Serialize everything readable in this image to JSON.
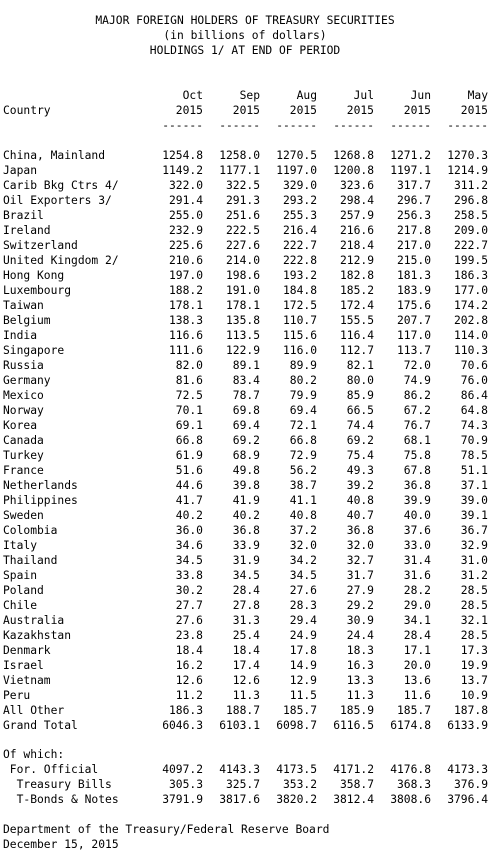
{
  "header": {
    "title_line_1": "MAJOR FOREIGN HOLDERS OF TREASURY SECURITIES",
    "title_line_2": "(in billions of dollars)",
    "title_line_3": "HOLDINGS 1/ AT END OF PERIOD"
  },
  "columns": {
    "country_label": "Country",
    "months": [
      "Oct",
      "Sep",
      "Aug",
      "Jul",
      "Jun",
      "May"
    ],
    "years": [
      "2015",
      "2015",
      "2015",
      "2015",
      "2015",
      "2015"
    ],
    "underline": "------"
  },
  "rows": [
    {
      "country": "China, Mainland",
      "values": [
        "1254.8",
        "1258.0",
        "1270.5",
        "1268.8",
        "1271.2",
        "1270.3"
      ]
    },
    {
      "country": "Japan",
      "values": [
        "1149.2",
        "1177.1",
        "1197.0",
        "1200.8",
        "1197.1",
        "1214.9"
      ]
    },
    {
      "country": "Carib Bkg Ctrs 4/",
      "values": [
        "322.0",
        "322.5",
        "329.0",
        "323.6",
        "317.7",
        "311.2"
      ]
    },
    {
      "country": "Oil Exporters 3/",
      "values": [
        "291.4",
        "291.3",
        "293.2",
        "298.4",
        "296.7",
        "296.8"
      ]
    },
    {
      "country": "Brazil",
      "values": [
        "255.0",
        "251.6",
        "255.3",
        "257.9",
        "256.3",
        "258.5"
      ]
    },
    {
      "country": "Ireland",
      "values": [
        "232.9",
        "222.5",
        "216.4",
        "216.6",
        "217.8",
        "209.0"
      ]
    },
    {
      "country": "Switzerland",
      "values": [
        "225.6",
        "227.6",
        "222.7",
        "218.4",
        "217.0",
        "222.7"
      ]
    },
    {
      "country": "United Kingdom 2/",
      "values": [
        "210.6",
        "214.0",
        "222.8",
        "212.9",
        "215.0",
        "199.5"
      ]
    },
    {
      "country": "Hong Kong",
      "values": [
        "197.0",
        "198.6",
        "193.2",
        "182.8",
        "181.3",
        "186.3"
      ]
    },
    {
      "country": "Luxembourg",
      "values": [
        "188.2",
        "191.0",
        "184.8",
        "185.2",
        "183.9",
        "177.0"
      ]
    },
    {
      "country": "Taiwan",
      "values": [
        "178.1",
        "178.1",
        "172.5",
        "172.4",
        "175.6",
        "174.2"
      ]
    },
    {
      "country": "Belgium",
      "values": [
        "138.3",
        "135.8",
        "110.7",
        "155.5",
        "207.7",
        "202.8"
      ]
    },
    {
      "country": "India",
      "values": [
        "116.6",
        "113.5",
        "115.6",
        "116.4",
        "117.0",
        "114.0"
      ]
    },
    {
      "country": "Singapore",
      "values": [
        "111.6",
        "122.9",
        "116.0",
        "112.7",
        "113.7",
        "110.3"
      ]
    },
    {
      "country": "Russia",
      "values": [
        "82.0",
        "89.1",
        "89.9",
        "82.1",
        "72.0",
        "70.6"
      ]
    },
    {
      "country": "Germany",
      "values": [
        "81.6",
        "83.4",
        "80.2",
        "80.0",
        "74.9",
        "76.0"
      ]
    },
    {
      "country": "Mexico",
      "values": [
        "72.5",
        "78.7",
        "79.9",
        "85.9",
        "86.2",
        "86.4"
      ]
    },
    {
      "country": "Norway",
      "values": [
        "70.1",
        "69.8",
        "69.4",
        "66.5",
        "67.2",
        "64.8"
      ]
    },
    {
      "country": "Korea",
      "values": [
        "69.1",
        "69.4",
        "72.1",
        "74.4",
        "76.7",
        "74.3"
      ]
    },
    {
      "country": "Canada",
      "values": [
        "66.8",
        "69.2",
        "66.8",
        "69.2",
        "68.1",
        "70.9"
      ]
    },
    {
      "country": "Turkey",
      "values": [
        "61.9",
        "68.9",
        "72.9",
        "75.4",
        "75.8",
        "78.5"
      ]
    },
    {
      "country": "France",
      "values": [
        "51.6",
        "49.8",
        "56.2",
        "49.3",
        "67.8",
        "51.1"
      ]
    },
    {
      "country": "Netherlands",
      "values": [
        "44.6",
        "39.8",
        "38.7",
        "39.2",
        "36.8",
        "37.1"
      ]
    },
    {
      "country": "Philippines",
      "values": [
        "41.7",
        "41.9",
        "41.1",
        "40.8",
        "39.9",
        "39.0"
      ]
    },
    {
      "country": "Sweden",
      "values": [
        "40.2",
        "40.2",
        "40.8",
        "40.7",
        "40.0",
        "39.1"
      ]
    },
    {
      "country": "Colombia",
      "values": [
        "36.0",
        "36.8",
        "37.2",
        "36.8",
        "37.6",
        "36.7"
      ]
    },
    {
      "country": "Italy",
      "values": [
        "34.6",
        "33.9",
        "32.0",
        "32.0",
        "33.0",
        "32.9"
      ]
    },
    {
      "country": "Thailand",
      "values": [
        "34.5",
        "31.9",
        "34.2",
        "32.7",
        "31.4",
        "31.0"
      ]
    },
    {
      "country": "Spain",
      "values": [
        "33.8",
        "34.5",
        "34.5",
        "31.7",
        "31.6",
        "31.2"
      ]
    },
    {
      "country": "Poland",
      "values": [
        "30.2",
        "28.4",
        "27.6",
        "27.9",
        "28.2",
        "28.5"
      ]
    },
    {
      "country": "Chile",
      "values": [
        "27.7",
        "27.8",
        "28.3",
        "29.2",
        "29.0",
        "28.5"
      ]
    },
    {
      "country": "Australia",
      "values": [
        "27.6",
        "31.3",
        "29.4",
        "30.9",
        "34.1",
        "32.1"
      ]
    },
    {
      "country": "Kazakhstan",
      "values": [
        "23.8",
        "25.4",
        "24.9",
        "24.4",
        "28.4",
        "28.5"
      ]
    },
    {
      "country": "Denmark",
      "values": [
        "18.4",
        "18.4",
        "17.8",
        "18.3",
        "17.1",
        "17.3"
      ]
    },
    {
      "country": "Israel",
      "values": [
        "16.2",
        "17.4",
        "14.9",
        "16.3",
        "20.0",
        "19.9"
      ]
    },
    {
      "country": "Vietnam",
      "values": [
        "12.6",
        "12.6",
        "12.9",
        "13.3",
        "13.6",
        "13.7"
      ]
    },
    {
      "country": "Peru",
      "values": [
        "11.2",
        "11.3",
        "11.5",
        "11.3",
        "11.6",
        "10.9"
      ]
    },
    {
      "country": "All Other",
      "values": [
        "186.3",
        "188.7",
        "185.7",
        "185.9",
        "185.7",
        "187.8"
      ]
    },
    {
      "country": "Grand Total",
      "values": [
        "6046.3",
        "6103.1",
        "6098.7",
        "6116.5",
        "6174.8",
        "6133.9"
      ]
    }
  ],
  "of_which": {
    "label": "Of which:",
    "rows": [
      {
        "country": " For. Official",
        "values": [
          "4097.2",
          "4143.3",
          "4173.5",
          "4171.2",
          "4176.8",
          "4173.3"
        ]
      },
      {
        "country": "  Treasury Bills",
        "values": [
          "305.3",
          "325.7",
          "353.2",
          "358.7",
          "368.3",
          "376.9"
        ]
      },
      {
        "country": "  T-Bonds & Notes",
        "values": [
          "3791.9",
          "3817.6",
          "3820.2",
          "3812.4",
          "3808.6",
          "3796.4"
        ]
      }
    ]
  },
  "footer": {
    "source": "Department of the Treasury/Federal Reserve Board",
    "date": "December 15, 2015"
  }
}
